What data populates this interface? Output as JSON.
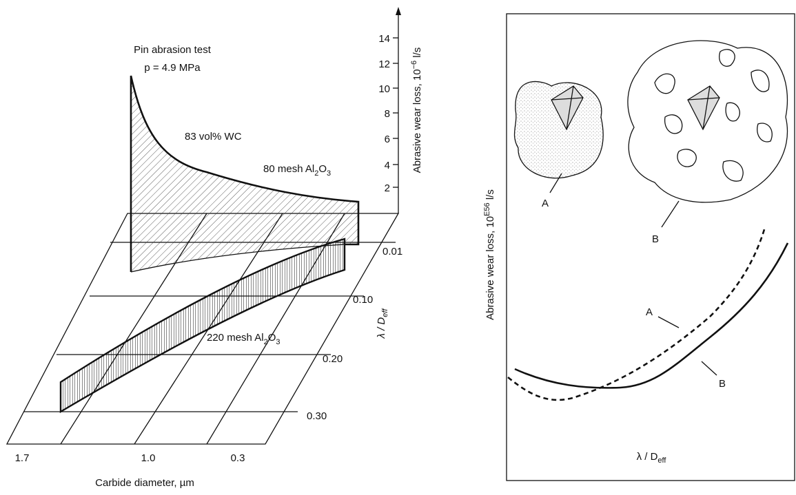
{
  "left_panel": {
    "test_title": "Pin abrasion test",
    "test_pressure": "p = 4.9 MPa",
    "composition": "83 vol% WC",
    "coarse_abrasive": [
      "80 mesh Al",
      "2",
      "O",
      "3"
    ],
    "fine_abrasive": [
      "220 mesh Al",
      "2",
      "O",
      "3"
    ],
    "vertical_axis_label": [
      "Abrasive wear loss, 10",
      "−6",
      " l/s"
    ],
    "vertical_ticks": [
      "2",
      "4",
      "6",
      "8",
      "10",
      "12",
      "14"
    ],
    "depth_axis_label": [
      "λ / D",
      "eff"
    ],
    "depth_ticks": [
      "0.01",
      "0.10",
      "0.20",
      "0.30"
    ],
    "horizontal_axis_label": "Carbide diameter, µm",
    "horizontal_ticks": [
      "1.7",
      "1.0",
      "0.3"
    ]
  },
  "right_panel": {
    "microstructure_a": "A",
    "microstructure_b": "B",
    "curve_a": "A",
    "curve_b": "B",
    "y_axis_label": [
      "Abrasive wear loss, 10",
      "E56",
      " l/s"
    ],
    "x_axis_label": [
      "λ / D",
      "eff"
    ]
  }
}
